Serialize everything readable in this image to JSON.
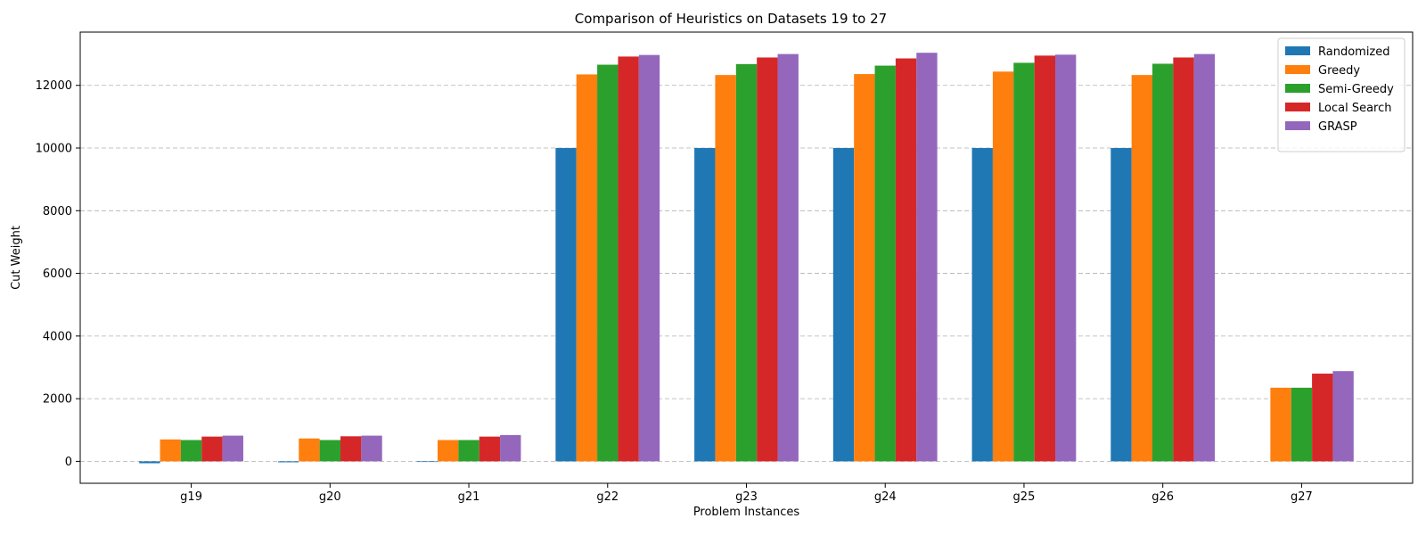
{
  "chart_data": {
    "type": "bar",
    "title": "Comparison of Heuristics on Datasets 19 to 27",
    "xlabel": "Problem Instances",
    "ylabel": "Cut Weight",
    "categories": [
      "g19",
      "g20",
      "g21",
      "g22",
      "g23",
      "g24",
      "g25",
      "g26",
      "g27"
    ],
    "ylim": [
      -700,
      13700
    ],
    "yticks": [
      0,
      2000,
      4000,
      6000,
      8000,
      10000,
      12000
    ],
    "grid": "horizontal dashed",
    "legend_position": "top-right",
    "series": [
      {
        "name": "Randomized",
        "color": "#1f77b4",
        "values": [
          -60,
          -30,
          -20,
          10000,
          10000,
          10000,
          10000,
          10000,
          0
        ]
      },
      {
        "name": "Greedy",
        "color": "#ff7f0e",
        "values": [
          700,
          730,
          680,
          12350,
          12330,
          12360,
          12440,
          12330,
          2350
        ]
      },
      {
        "name": "Semi-Greedy",
        "color": "#2ca02c",
        "values": [
          680,
          680,
          680,
          12660,
          12680,
          12630,
          12720,
          12690,
          2350
        ]
      },
      {
        "name": "Local Search",
        "color": "#d62728",
        "values": [
          790,
          800,
          790,
          12920,
          12890,
          12860,
          12950,
          12890,
          2800
        ]
      },
      {
        "name": "GRASP",
        "color": "#9467bd",
        "values": [
          820,
          820,
          840,
          12970,
          13000,
          13040,
          12980,
          13000,
          2880
        ]
      }
    ]
  }
}
